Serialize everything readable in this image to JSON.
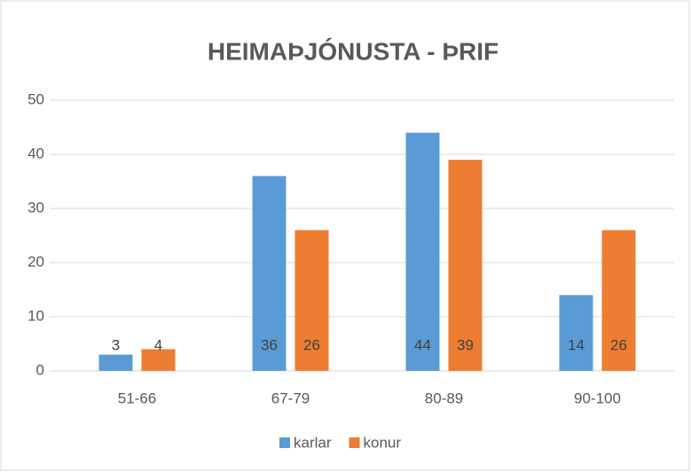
{
  "chart_data": {
    "type": "bar",
    "title": "HEIMAÞJÓNUSTA - ÞRIF",
    "categories": [
      "51-66",
      "67-79",
      "80-89",
      "90-100"
    ],
    "series": [
      {
        "name": "karlar",
        "color": "#5b9bd5",
        "values": [
          3,
          36,
          44,
          14
        ]
      },
      {
        "name": "konur",
        "color": "#ed7d31",
        "values": [
          4,
          26,
          39,
          26
        ]
      }
    ],
    "ylim": [
      0,
      50
    ],
    "yticks": [
      0,
      10,
      20,
      30,
      40,
      50
    ],
    "grid": true,
    "legend": "bottom"
  }
}
